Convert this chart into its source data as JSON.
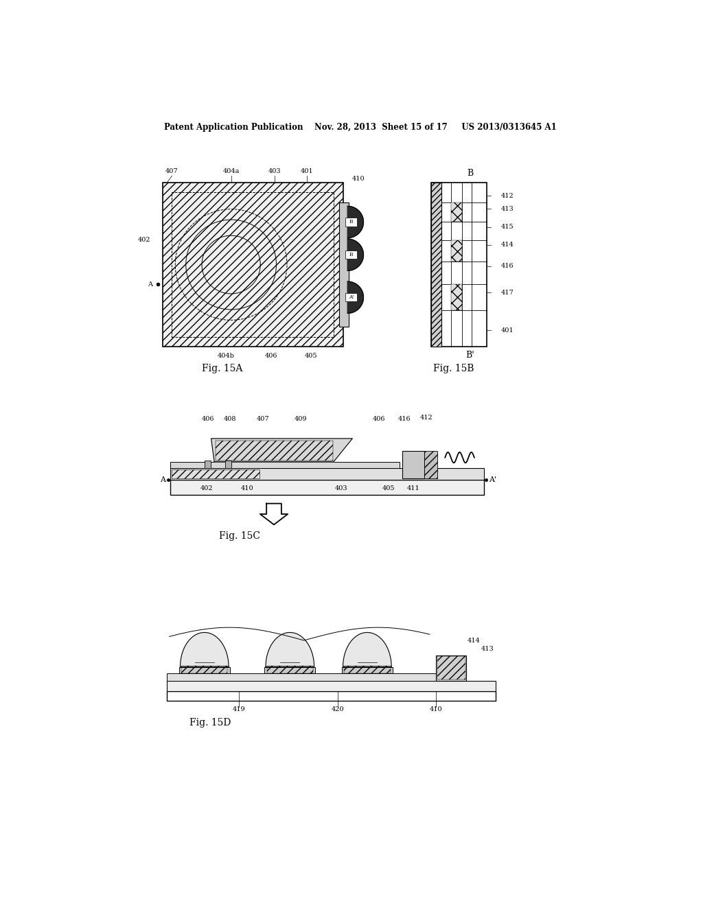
{
  "bg_color": "#ffffff",
  "header_text": "Patent Application Publication    Nov. 28, 2013  Sheet 15 of 17     US 2013/0313645 A1",
  "fig15A_label": "Fig. 15A",
  "fig15B_label": "Fig. 15B",
  "fig15C_label": "Fig. 15C",
  "fig15D_label": "Fig. 15D",
  "label_fontsize": 11,
  "annotation_fontsize": 7.5
}
